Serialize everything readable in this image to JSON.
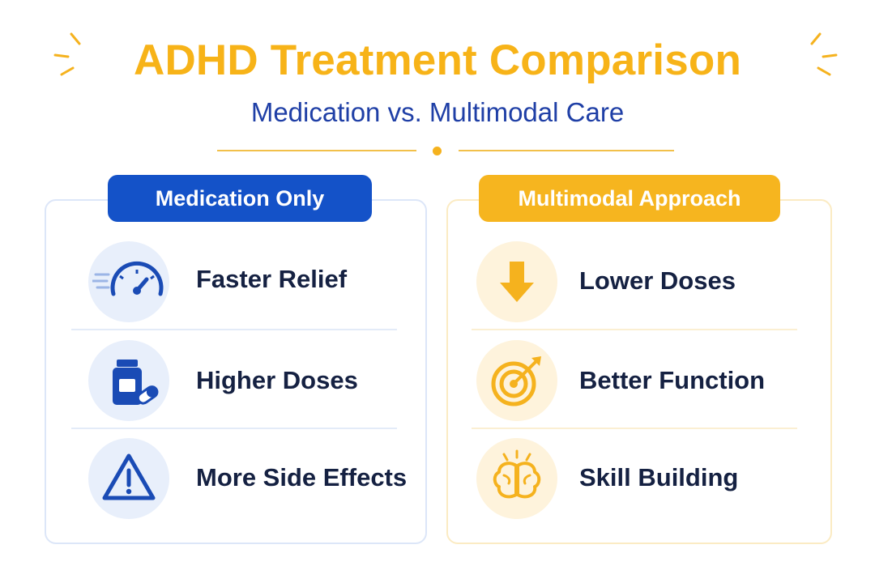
{
  "title": "ADHD Treatment Comparison",
  "subtitle": "Medication vs. Multimodal Care",
  "colors": {
    "title": "#F7B318",
    "subtitle": "#1F3FA6",
    "left_accent": "#1452C8",
    "right_accent": "#F6B51F",
    "item_text": "#152142"
  },
  "left_panel": {
    "heading": "Medication Only",
    "items": [
      {
        "label": "Faster Relief",
        "icon": "speedometer-icon"
      },
      {
        "label": "Higher Doses",
        "icon": "pill-bottle-icon"
      },
      {
        "label": "More Side Effects",
        "icon": "warning-icon"
      }
    ]
  },
  "right_panel": {
    "heading": "Multimodal Approach",
    "items": [
      {
        "label": "Lower Doses",
        "icon": "down-arrow-icon"
      },
      {
        "label": "Better Function",
        "icon": "target-icon"
      },
      {
        "label": "Skill Building",
        "icon": "brain-icon"
      }
    ]
  }
}
